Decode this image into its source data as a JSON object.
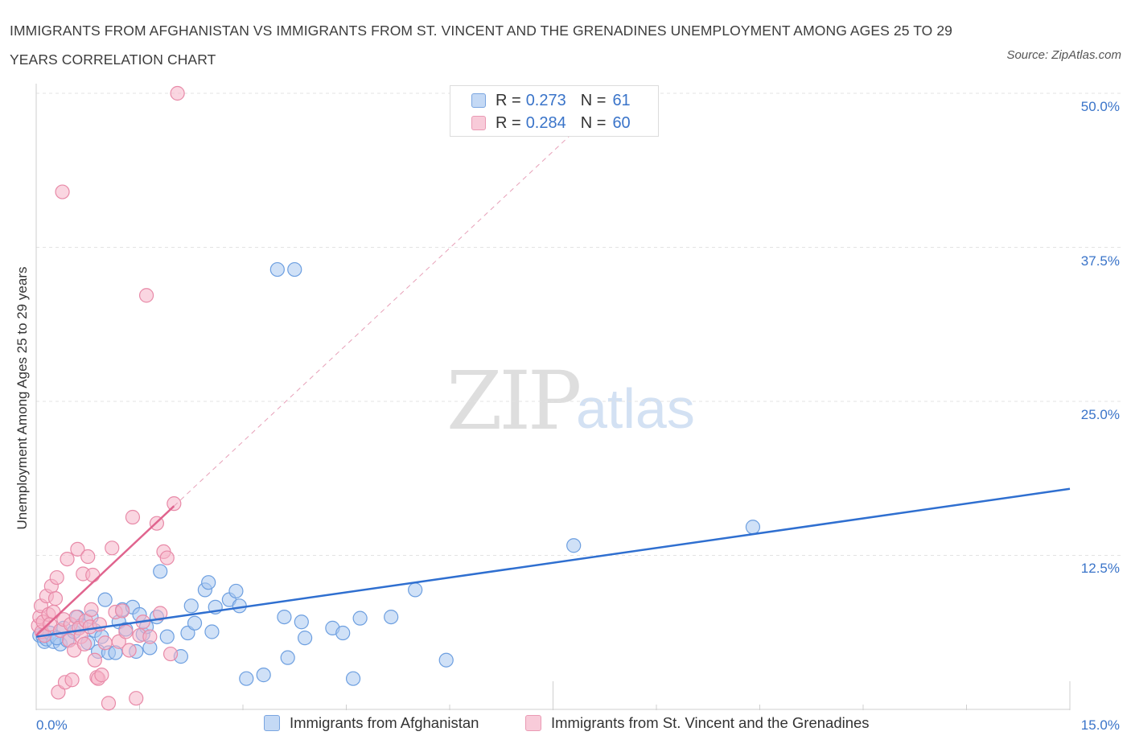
{
  "header": {
    "title": "IMMIGRANTS FROM AFGHANISTAN VS IMMIGRANTS FROM ST. VINCENT AND THE GRENADINES UNEMPLOYMENT AMONG AGES 25 TO 29 YEARS CORRELATION CHART",
    "source": "Source: ZipAtlas.com"
  },
  "watermark": {
    "zip": "ZIP",
    "atlas": "atlas"
  },
  "legend_top": {
    "rows": [
      {
        "r_label": "R =",
        "r_value": "0.273",
        "n_label": "N =",
        "n_value": "61",
        "color": "#a9c8f1"
      },
      {
        "r_label": "R =",
        "r_value": "0.284",
        "n_label": "N =",
        "n_value": "60",
        "color": "#f5b4c8"
      }
    ]
  },
  "legend_bottom": {
    "items": [
      {
        "label": "Immigrants from Afghanistan",
        "color": "#a9c8f1"
      },
      {
        "label": "Immigrants from St. Vincent and the Grenadines",
        "color": "#f5b4c8"
      }
    ]
  },
  "axes": {
    "ylabel": "Unemployment Among Ages 25 to 29 years",
    "yticks": [
      "12.5%",
      "25.0%",
      "37.5%",
      "50.0%"
    ],
    "xtick_min": "0.0%",
    "xtick_max": "15.0%"
  },
  "colors": {
    "blue_fill": "#a9c8f1",
    "blue_stroke": "#6d9fe0",
    "blue_line": "#2f6fd0",
    "pink_fill": "#f5b4c8",
    "pink_stroke": "#e88aa8",
    "pink_line": "#e0648e",
    "grid": "#e3e3e3",
    "tick_text": "#3a74c9"
  },
  "chart_data": {
    "type": "scatter",
    "xlim": [
      0,
      15
    ],
    "ylim": [
      0,
      50
    ],
    "x_unit": "percent",
    "y_unit": "percent",
    "grid": true,
    "series": [
      {
        "name": "Immigrants from Afghanistan",
        "color": "#a9c8f1",
        "points": [
          [
            0.05,
            6.0
          ],
          [
            0.1,
            5.9
          ],
          [
            0.12,
            5.5
          ],
          [
            0.15,
            5.7
          ],
          [
            0.2,
            6.2
          ],
          [
            0.25,
            5.5
          ],
          [
            0.35,
            5.3
          ],
          [
            0.4,
            6.6
          ],
          [
            0.45,
            5.6
          ],
          [
            0.55,
            6.3
          ],
          [
            0.6,
            7.5
          ],
          [
            0.65,
            6.8
          ],
          [
            0.75,
            5.4
          ],
          [
            0.8,
            7.5
          ],
          [
            0.85,
            6.4
          ],
          [
            0.9,
            4.7
          ],
          [
            0.95,
            5.9
          ],
          [
            1.0,
            8.9
          ],
          [
            1.05,
            4.6
          ],
          [
            1.15,
            4.6
          ],
          [
            1.2,
            7.1
          ],
          [
            1.25,
            8.1
          ],
          [
            1.3,
            6.5
          ],
          [
            1.4,
            8.3
          ],
          [
            1.45,
            4.7
          ],
          [
            1.5,
            7.7
          ],
          [
            1.55,
            6.1
          ],
          [
            1.6,
            6.7
          ],
          [
            1.65,
            5.0
          ],
          [
            1.75,
            7.5
          ],
          [
            1.8,
            11.2
          ],
          [
            1.9,
            5.9
          ],
          [
            2.1,
            4.3
          ],
          [
            2.2,
            6.2
          ],
          [
            2.25,
            8.4
          ],
          [
            2.3,
            7.0
          ],
          [
            2.45,
            9.7
          ],
          [
            2.5,
            10.3
          ],
          [
            2.55,
            6.3
          ],
          [
            2.6,
            8.3
          ],
          [
            2.8,
            8.9
          ],
          [
            2.9,
            9.6
          ],
          [
            2.95,
            8.4
          ],
          [
            3.05,
            2.5
          ],
          [
            3.3,
            2.8
          ],
          [
            3.5,
            35.7
          ],
          [
            3.6,
            7.5
          ],
          [
            3.65,
            4.2
          ],
          [
            3.75,
            35.7
          ],
          [
            3.85,
            7.1
          ],
          [
            3.9,
            5.8
          ],
          [
            4.3,
            6.6
          ],
          [
            4.45,
            6.2
          ],
          [
            4.6,
            2.5
          ],
          [
            4.7,
            7.4
          ],
          [
            5.15,
            7.5
          ],
          [
            5.5,
            9.7
          ],
          [
            5.95,
            4.0
          ],
          [
            7.8,
            13.3
          ],
          [
            10.4,
            14.8
          ],
          [
            0.3,
            5.8
          ]
        ]
      },
      {
        "name": "Immigrants from St. Vincent and the Grenadines",
        "color": "#f5b4c8",
        "points": [
          [
            0.03,
            6.8
          ],
          [
            0.05,
            7.5
          ],
          [
            0.07,
            8.4
          ],
          [
            0.08,
            6.3
          ],
          [
            0.1,
            7.1
          ],
          [
            0.12,
            6.0
          ],
          [
            0.15,
            9.2
          ],
          [
            0.18,
            7.7
          ],
          [
            0.2,
            6.9
          ],
          [
            0.22,
            10.0
          ],
          [
            0.25,
            7.9
          ],
          [
            0.28,
            9.0
          ],
          [
            0.3,
            10.7
          ],
          [
            0.32,
            1.4
          ],
          [
            0.35,
            6.4
          ],
          [
            0.38,
            42.0
          ],
          [
            0.4,
            7.3
          ],
          [
            0.42,
            2.2
          ],
          [
            0.45,
            12.2
          ],
          [
            0.48,
            5.6
          ],
          [
            0.5,
            6.9
          ],
          [
            0.52,
            2.4
          ],
          [
            0.55,
            4.8
          ],
          [
            0.58,
            7.5
          ],
          [
            0.6,
            13.0
          ],
          [
            0.62,
            6.6
          ],
          [
            0.65,
            5.9
          ],
          [
            0.68,
            11.0
          ],
          [
            0.7,
            5.3
          ],
          [
            0.72,
            7.2
          ],
          [
            0.75,
            12.4
          ],
          [
            0.78,
            6.7
          ],
          [
            0.8,
            8.1
          ],
          [
            0.82,
            10.9
          ],
          [
            0.85,
            4.0
          ],
          [
            0.88,
            2.6
          ],
          [
            0.9,
            2.5
          ],
          [
            0.92,
            6.9
          ],
          [
            0.95,
            2.8
          ],
          [
            1.0,
            5.4
          ],
          [
            1.05,
            0.5
          ],
          [
            1.1,
            13.1
          ],
          [
            1.15,
            7.9
          ],
          [
            1.2,
            5.5
          ],
          [
            1.25,
            8.0
          ],
          [
            1.3,
            6.3
          ],
          [
            1.35,
            4.8
          ],
          [
            1.4,
            15.6
          ],
          [
            1.45,
            0.9
          ],
          [
            1.5,
            6.0
          ],
          [
            1.55,
            7.1
          ],
          [
            1.6,
            33.6
          ],
          [
            1.65,
            5.9
          ],
          [
            1.75,
            15.1
          ],
          [
            1.8,
            7.8
          ],
          [
            1.85,
            12.8
          ],
          [
            1.9,
            12.3
          ],
          [
            1.95,
            4.5
          ],
          [
            2.0,
            16.7
          ],
          [
            2.05,
            50.0
          ]
        ]
      }
    ],
    "trendlines": [
      {
        "series": "Immigrants from Afghanistan",
        "x": [
          0.0,
          15.0
        ],
        "y": [
          5.9,
          17.9
        ],
        "style": "solid"
      },
      {
        "series": "Immigrants from St. Vincent and the Grenadines",
        "x": [
          0.0,
          2.0
        ],
        "y": [
          6.0,
          16.5
        ],
        "style": "solid"
      },
      {
        "series": "Immigrants from St. Vincent and the Grenadines",
        "x": [
          2.0,
          8.4
        ],
        "y": [
          16.5,
          50.0
        ],
        "style": "dashed"
      }
    ]
  }
}
